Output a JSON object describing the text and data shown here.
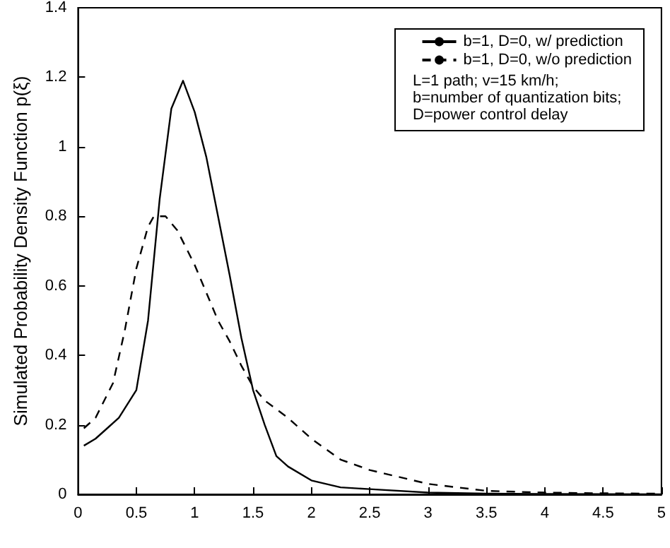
{
  "chart_data": {
    "type": "line",
    "ylabel": "Simulated Probability Density Function p(ξ)",
    "xlim": [
      0,
      5
    ],
    "xticks": [
      0,
      0.5,
      1,
      1.5,
      2,
      2.5,
      3,
      3.5,
      4,
      4.5,
      5
    ],
    "ylim": [
      0,
      1.4
    ],
    "yticks": [
      0,
      0.2,
      0.4,
      0.6,
      0.8,
      1,
      1.2,
      1.4
    ],
    "grid": false,
    "legend": "top right",
    "marker": "none",
    "annotations": [
      "L=1 path; v=15 km/h;",
      "b=number of quantization bits;",
      "D=power control delay"
    ],
    "series": [
      {
        "name": "b=1, D=0, w/ prediction",
        "color": "#000000",
        "line_style": "solid",
        "x": [
          0.05,
          0.15,
          0.25,
          0.35,
          0.5,
          0.6,
          0.7,
          0.8,
          0.9,
          1.0,
          1.1,
          1.2,
          1.3,
          1.4,
          1.5,
          1.6,
          1.7,
          1.8,
          2.0,
          2.25,
          2.5,
          3.0,
          3.5,
          4.0,
          5.0
        ],
        "values": [
          0.14,
          0.16,
          0.19,
          0.22,
          0.3,
          0.5,
          0.85,
          1.11,
          1.19,
          1.1,
          0.97,
          0.8,
          0.63,
          0.45,
          0.3,
          0.2,
          0.11,
          0.08,
          0.04,
          0.02,
          0.015,
          0.005,
          0.002,
          0.001,
          0
        ]
      },
      {
        "name": "b=1, D=0, w/o prediction",
        "color": "#000000",
        "line_style": "dashed",
        "x": [
          0.05,
          0.15,
          0.3,
          0.4,
          0.5,
          0.6,
          0.65,
          0.75,
          0.85,
          1.0,
          1.2,
          1.3,
          1.4,
          1.5,
          1.6,
          1.8,
          2.0,
          2.25,
          2.5,
          3.0,
          3.5,
          4.0,
          4.5,
          5.0
        ],
        "values": [
          0.19,
          0.22,
          0.32,
          0.47,
          0.65,
          0.77,
          0.8,
          0.8,
          0.76,
          0.66,
          0.5,
          0.44,
          0.37,
          0.31,
          0.27,
          0.22,
          0.16,
          0.1,
          0.07,
          0.03,
          0.01,
          0.005,
          0.003,
          0.002
        ]
      }
    ]
  }
}
